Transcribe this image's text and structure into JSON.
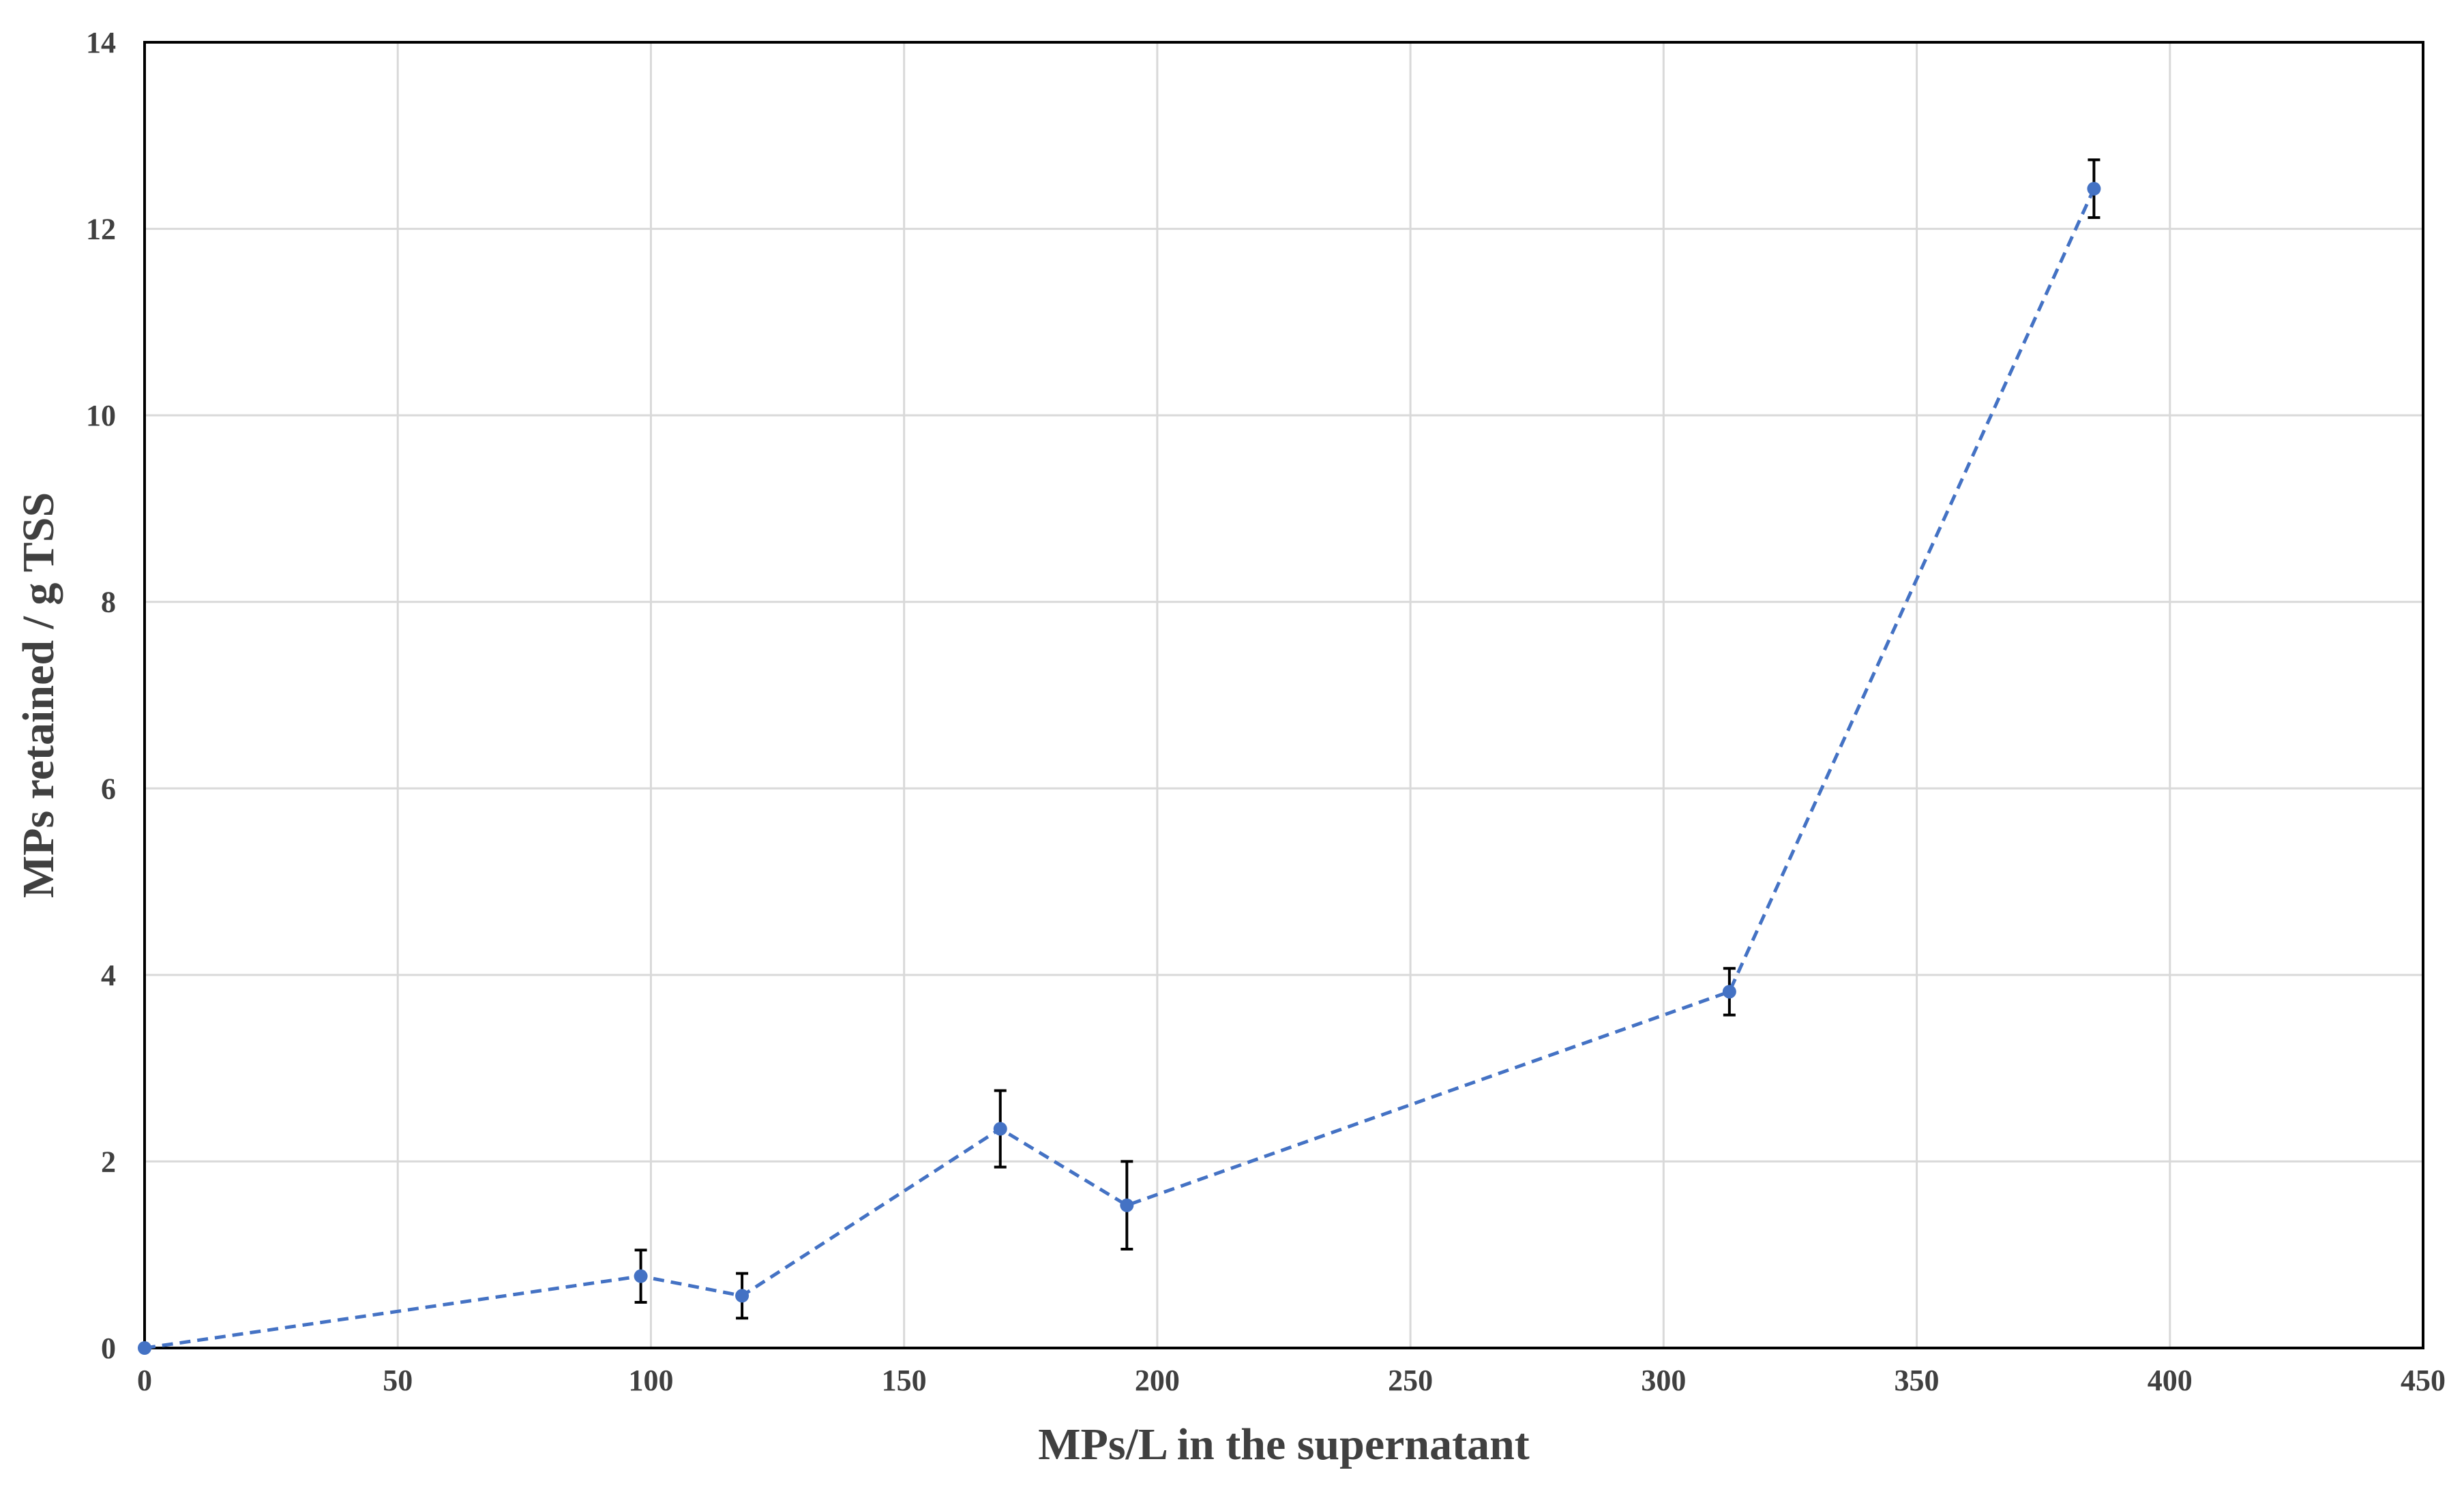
{
  "chart_data": {
    "type": "scatter",
    "xlabel": "MPs/L in the supernatant",
    "ylabel": "MPs retained / g TSS",
    "xlim": [
      0,
      450
    ],
    "ylim": [
      0,
      14
    ],
    "x_ticks": [
      0,
      50,
      100,
      150,
      200,
      250,
      300,
      350,
      400,
      450
    ],
    "y_ticks": [
      0,
      2,
      4,
      6,
      8,
      10,
      12,
      14
    ],
    "grid": true,
    "legend": "none",
    "connect_points": "dashed line",
    "series": [
      {
        "color": "#4472c4",
        "points": [
          {
            "x": 0,
            "y": 0.0,
            "err": 0.0
          },
          {
            "x": 98,
            "y": 0.77,
            "err": 0.28
          },
          {
            "x": 118,
            "y": 0.56,
            "err": 0.24
          },
          {
            "x": 169,
            "y": 2.35,
            "err": 0.41
          },
          {
            "x": 194,
            "y": 1.53,
            "err": 0.47
          },
          {
            "x": 313,
            "y": 3.82,
            "err": 0.25
          },
          {
            "x": 385,
            "y": 12.43,
            "err": 0.31
          }
        ]
      }
    ]
  }
}
